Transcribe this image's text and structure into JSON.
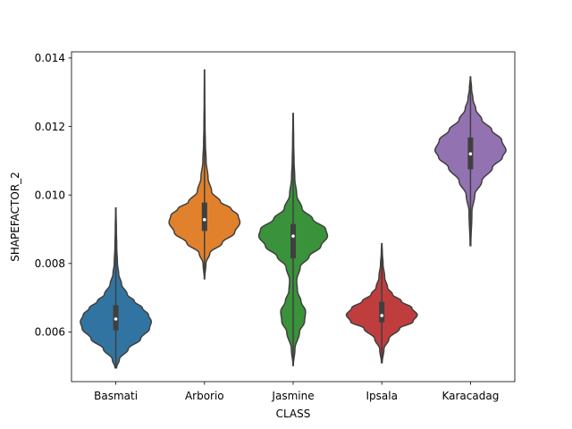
{
  "chart_data": {
    "type": "violin",
    "xlabel": "CLASS",
    "ylabel": "SHAPEFACTOR_2",
    "ylim": [
      0.00455,
      0.01418
    ],
    "yticks": [
      0.006,
      0.008,
      0.01,
      0.012,
      0.014
    ],
    "ytick_labels": [
      "0.006",
      "0.008",
      "0.010",
      "0.012",
      "0.014"
    ],
    "categories": [
      "Basmati",
      "Arborio",
      "Jasmine",
      "Ipsala",
      "Karacadag"
    ],
    "colors": [
      "#3274a1",
      "#e1812c",
      "#3a923a",
      "#c03d3e",
      "#9372b2"
    ],
    "violins": [
      {
        "category": "Basmati",
        "min": 0.00495,
        "max": 0.00962,
        "q1": 0.00605,
        "median": 0.00638,
        "q3": 0.00678,
        "profile": [
          [
            0.00495,
            0.02
          ],
          [
            0.0052,
            0.1
          ],
          [
            0.0055,
            0.35
          ],
          [
            0.0058,
            0.7
          ],
          [
            0.0061,
            0.95
          ],
          [
            0.0063,
            1.0
          ],
          [
            0.0065,
            0.92
          ],
          [
            0.0067,
            0.75
          ],
          [
            0.0069,
            0.52
          ],
          [
            0.0071,
            0.32
          ],
          [
            0.0074,
            0.16
          ],
          [
            0.0077,
            0.08
          ],
          [
            0.008,
            0.045
          ],
          [
            0.0085,
            0.025
          ],
          [
            0.009,
            0.015
          ],
          [
            0.00962,
            0.005
          ]
        ]
      },
      {
        "category": "Arborio",
        "min": 0.00755,
        "max": 0.01365,
        "q1": 0.00895,
        "median": 0.00928,
        "q3": 0.00978,
        "profile": [
          [
            0.00755,
            0.005
          ],
          [
            0.008,
            0.04
          ],
          [
            0.0083,
            0.15
          ],
          [
            0.0086,
            0.5
          ],
          [
            0.0089,
            0.85
          ],
          [
            0.0092,
            1.0
          ],
          [
            0.0094,
            0.95
          ],
          [
            0.0096,
            0.75
          ],
          [
            0.0098,
            0.45
          ],
          [
            0.0101,
            0.2
          ],
          [
            0.0105,
            0.1
          ],
          [
            0.011,
            0.045
          ],
          [
            0.0115,
            0.025
          ],
          [
            0.012,
            0.015
          ],
          [
            0.0128,
            0.008
          ],
          [
            0.01365,
            0.004
          ]
        ]
      },
      {
        "category": "Jasmine",
        "min": 0.00502,
        "max": 0.01238,
        "q1": 0.00815,
        "median": 0.0088,
        "q3": 0.00915,
        "profile": [
          [
            0.00502,
            0.005
          ],
          [
            0.0055,
            0.05
          ],
          [
            0.006,
            0.18
          ],
          [
            0.0063,
            0.32
          ],
          [
            0.0066,
            0.35
          ],
          [
            0.0069,
            0.22
          ],
          [
            0.0072,
            0.12
          ],
          [
            0.0075,
            0.1
          ],
          [
            0.0079,
            0.2
          ],
          [
            0.0082,
            0.45
          ],
          [
            0.0085,
            0.78
          ],
          [
            0.0088,
            0.97
          ],
          [
            0.009,
            0.92
          ],
          [
            0.0093,
            0.55
          ],
          [
            0.0096,
            0.25
          ],
          [
            0.01,
            0.1
          ],
          [
            0.0105,
            0.045
          ],
          [
            0.011,
            0.025
          ],
          [
            0.0115,
            0.015
          ],
          [
            0.01238,
            0.005
          ]
        ]
      },
      {
        "category": "Ipsala",
        "min": 0.0051,
        "max": 0.00858,
        "q1": 0.00628,
        "median": 0.00648,
        "q3": 0.00688,
        "profile": [
          [
            0.0051,
            0.01
          ],
          [
            0.0055,
            0.06
          ],
          [
            0.0058,
            0.2
          ],
          [
            0.0061,
            0.5
          ],
          [
            0.0063,
            0.88
          ],
          [
            0.0065,
            1.0
          ],
          [
            0.0067,
            0.85
          ],
          [
            0.0069,
            0.55
          ],
          [
            0.0071,
            0.3
          ],
          [
            0.0073,
            0.16
          ],
          [
            0.0076,
            0.08
          ],
          [
            0.008,
            0.035
          ],
          [
            0.0083,
            0.015
          ],
          [
            0.00858,
            0.005
          ]
        ]
      },
      {
        "category": "Karacadag",
        "min": 0.00852,
        "max": 0.01345,
        "q1": 0.01075,
        "median": 0.0112,
        "q3": 0.01168,
        "profile": [
          [
            0.00852,
            0.01
          ],
          [
            0.0095,
            0.04
          ],
          [
            0.01,
            0.12
          ],
          [
            0.0104,
            0.32
          ],
          [
            0.0108,
            0.62
          ],
          [
            0.0111,
            0.9
          ],
          [
            0.0113,
            1.0
          ],
          [
            0.0116,
            0.88
          ],
          [
            0.0119,
            0.6
          ],
          [
            0.0122,
            0.32
          ],
          [
            0.0125,
            0.15
          ],
          [
            0.0128,
            0.07
          ],
          [
            0.0131,
            0.03
          ],
          [
            0.01345,
            0.005
          ]
        ]
      }
    ]
  }
}
